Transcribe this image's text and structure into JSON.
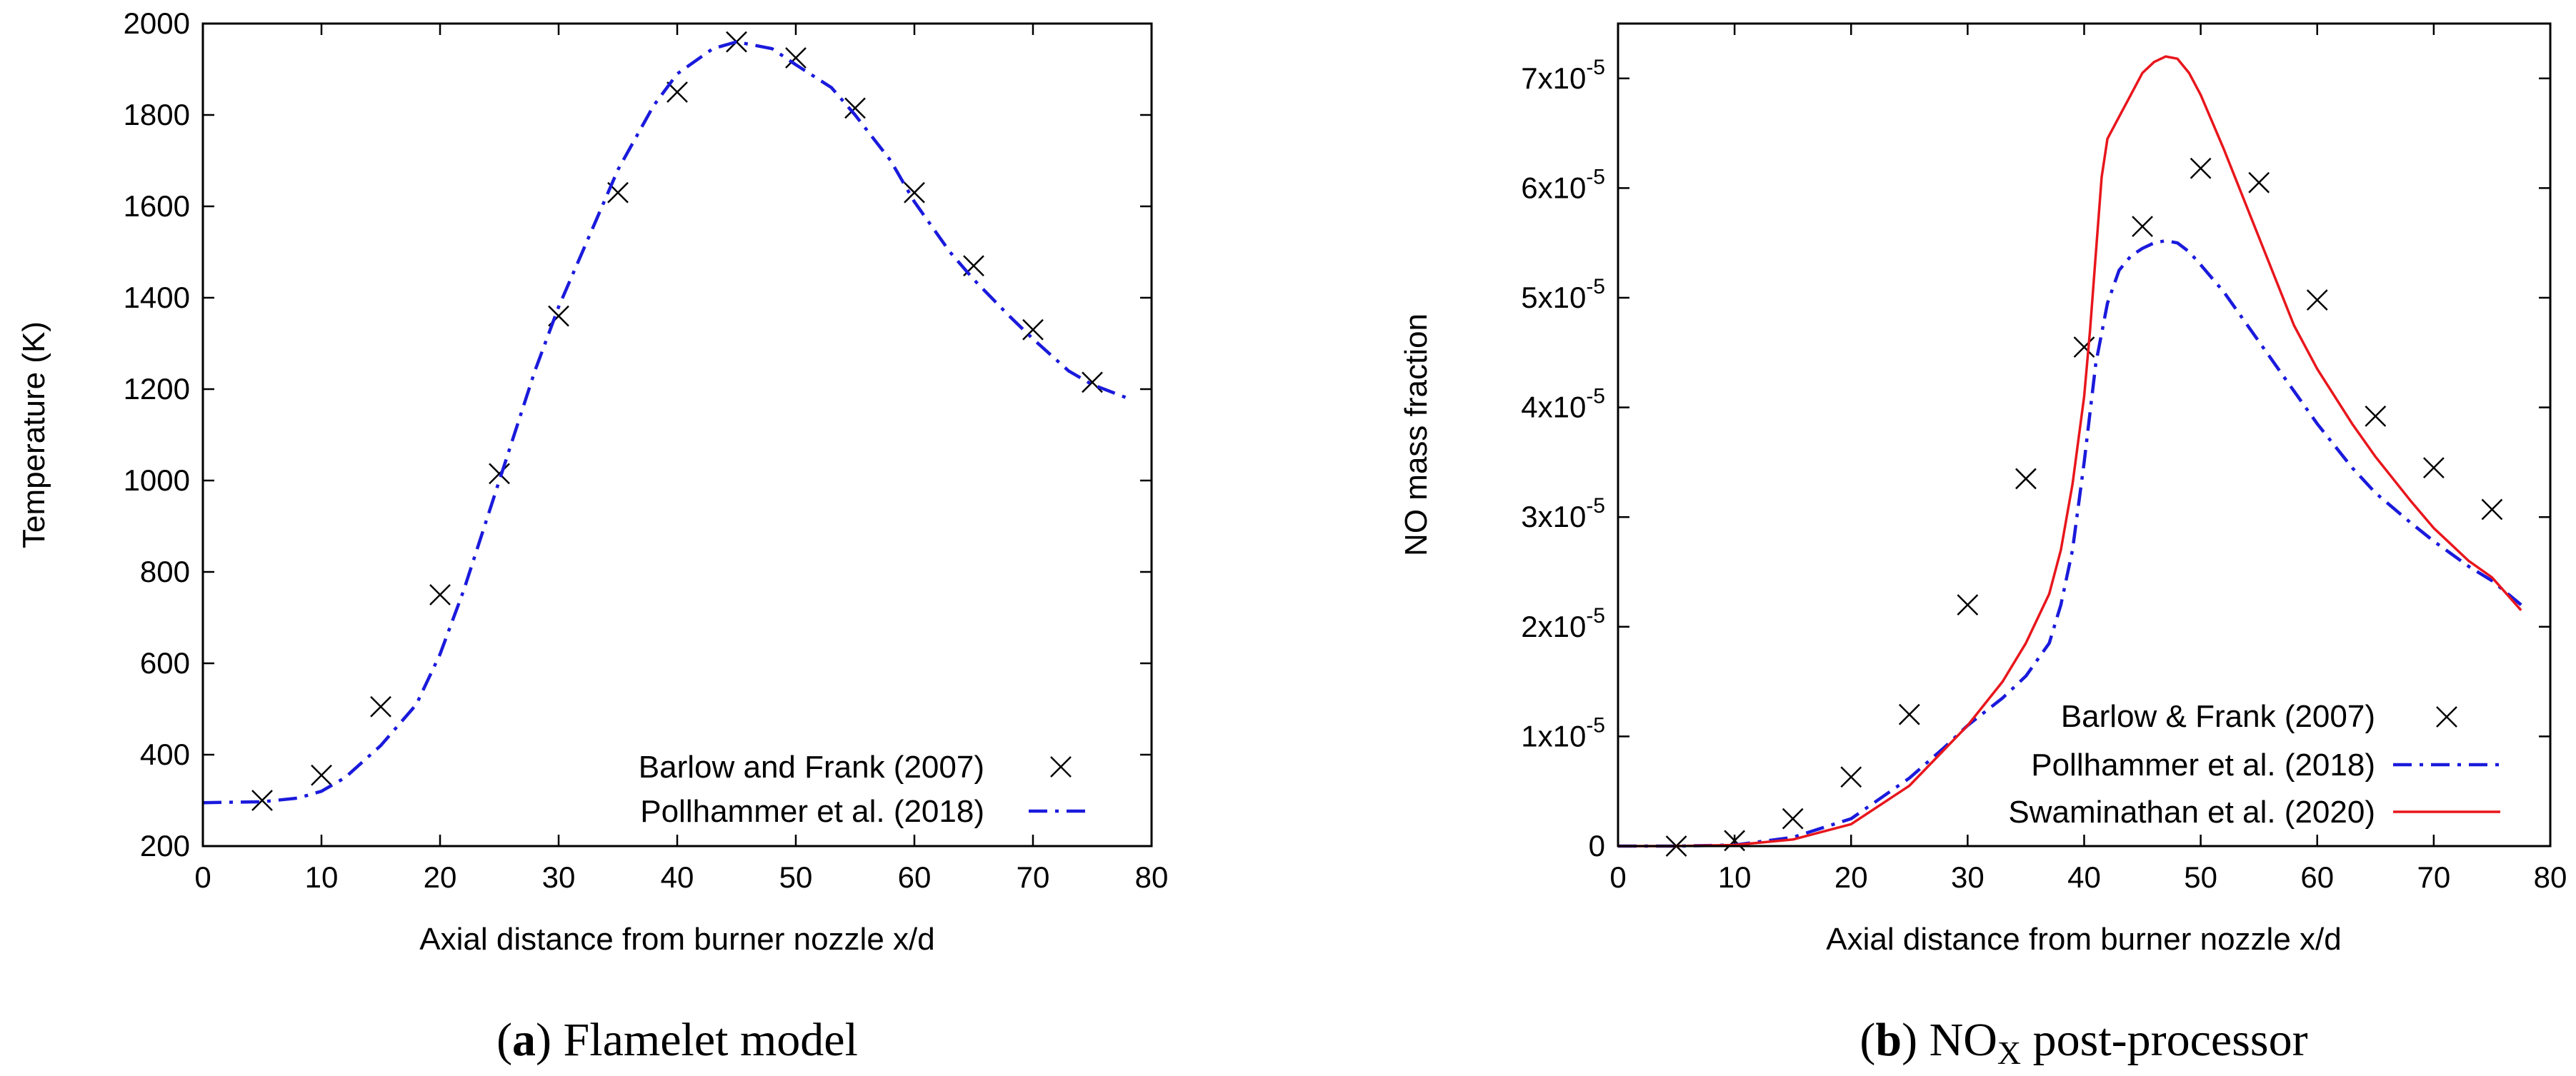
{
  "chart_data": [
    {
      "type": "line",
      "panel": "a",
      "caption": {
        "label": "a",
        "text": " Flamelet model"
      },
      "xlabel": "Axial distance from burner nozzle x/d",
      "ylabel": "Temperature (K)",
      "xlim": [
        0,
        80
      ],
      "ylim": [
        200,
        2000
      ],
      "xticks": [
        0,
        10,
        20,
        30,
        40,
        50,
        60,
        70,
        80
      ],
      "yticks": [
        200,
        400,
        600,
        800,
        1000,
        1200,
        1400,
        1600,
        1800,
        2000
      ],
      "xtick_labels": [
        "0",
        "10",
        "20",
        "30",
        "40",
        "50",
        "60",
        "70",
        "80"
      ],
      "ytick_labels": [
        "200",
        "400",
        "600",
        "800",
        "1000",
        "1200",
        "1400",
        "1600",
        "1800",
        "2000"
      ],
      "legend_position": "bottom-right",
      "series": [
        {
          "name": "Barlow and Frank (2007)",
          "style": "markers",
          "marker": "x",
          "color": "#000000",
          "x": [
            5,
            10,
            15,
            20,
            25,
            30,
            35,
            40,
            45,
            50,
            55,
            60,
            65,
            70,
            75
          ],
          "y": [
            300,
            355,
            505,
            750,
            1015,
            1360,
            1630,
            1850,
            1960,
            1925,
            1815,
            1630,
            1470,
            1330,
            1215
          ]
        },
        {
          "name": "Pollhammer et al. (2018)",
          "style": "dash-dot",
          "color": "#1a1adc",
          "x": [
            0,
            5,
            8,
            10,
            12,
            15,
            18,
            20,
            22,
            25,
            28,
            30,
            33,
            35,
            38,
            40,
            43,
            45,
            48,
            50,
            53,
            55,
            58,
            60,
            63,
            65,
            68,
            70,
            73,
            75,
            78
          ],
          "y": [
            295,
            297,
            305,
            320,
            350,
            420,
            510,
            620,
            760,
            1000,
            1240,
            1380,
            1560,
            1680,
            1820,
            1890,
            1945,
            1960,
            1945,
            1910,
            1860,
            1800,
            1700,
            1610,
            1500,
            1440,
            1360,
            1310,
            1240,
            1210,
            1180
          ]
        }
      ]
    },
    {
      "type": "line",
      "panel": "b",
      "caption": {
        "label": "b",
        "text": " NO",
        "sub": "X",
        "tail": " post-processor"
      },
      "xlabel": "Axial distance from burner nozzle x/d",
      "ylabel": "NO mass fraction",
      "xlim": [
        0,
        80
      ],
      "ylim": [
        0,
        7.5e-05
      ],
      "xticks": [
        0,
        10,
        20,
        30,
        40,
        50,
        60,
        70,
        80
      ],
      "yticks": [
        0,
        1e-05,
        2e-05,
        3e-05,
        4e-05,
        5e-05,
        6e-05,
        7e-05
      ],
      "xtick_labels": [
        "0",
        "10",
        "20",
        "30",
        "40",
        "50",
        "60",
        "70",
        "80"
      ],
      "ytick_labels": [
        {
          "mant": "0",
          "exp": ""
        },
        {
          "mant": "1x10",
          "exp": "-5"
        },
        {
          "mant": "2x10",
          "exp": "-5"
        },
        {
          "mant": "3x10",
          "exp": "-5"
        },
        {
          "mant": "4x10",
          "exp": "-5"
        },
        {
          "mant": "5x10",
          "exp": "-5"
        },
        {
          "mant": "6x10",
          "exp": "-5"
        },
        {
          "mant": "7x10",
          "exp": "-5"
        }
      ],
      "legend_position": "bottom-right",
      "series": [
        {
          "name": "Barlow & Frank (2007)",
          "style": "markers",
          "marker": "x",
          "color": "#000000",
          "x": [
            5,
            10,
            15,
            20,
            25,
            30,
            35,
            40,
            45,
            50,
            55,
            60,
            65,
            70,
            75
          ],
          "y": [
            0.0,
            5e-07,
            2.5e-06,
            6.3e-06,
            1.2e-05,
            2.2e-05,
            3.35e-05,
            4.55e-05,
            5.65e-05,
            6.18e-05,
            6.05e-05,
            4.98e-05,
            3.92e-05,
            3.45e-05,
            3.07e-05
          ]
        },
        {
          "name": "Pollhammer et al. (2018)",
          "style": "dash-dot",
          "color": "#1a1adc",
          "x": [
            0,
            5,
            10,
            15,
            20,
            25,
            28,
            30,
            33,
            35,
            37,
            38,
            39,
            40,
            41,
            42,
            43,
            44,
            45,
            46,
            47,
            48,
            49,
            50,
            52,
            55,
            58,
            60,
            63,
            65,
            68,
            70,
            73,
            75,
            77.5
          ],
          "y": [
            0,
            0,
            1e-07,
            8e-07,
            2.5e-06,
            6.2e-06,
            9e-06,
            1.1e-05,
            1.35e-05,
            1.55e-05,
            1.85e-05,
            2.2e-05,
            2.7e-05,
            3.5e-05,
            4.4e-05,
            4.95e-05,
            5.25e-05,
            5.38e-05,
            5.45e-05,
            5.5e-05,
            5.52e-05,
            5.5e-05,
            5.42e-05,
            5.3e-05,
            5.05e-05,
            4.6e-05,
            4.15e-05,
            3.85e-05,
            3.45e-05,
            3.22e-05,
            2.95e-05,
            2.78e-05,
            2.55e-05,
            2.42e-05,
            2.2e-05
          ]
        },
        {
          "name": "Swaminathan et al. (2020)",
          "style": "solid",
          "color": "#e8161c",
          "x": [
            0,
            5,
            10,
            15,
            20,
            25,
            30,
            33,
            35,
            37,
            38,
            39,
            40,
            40.5,
            41,
            41.5,
            42,
            43,
            44,
            45,
            46,
            47,
            48,
            49,
            50,
            52,
            55,
            58,
            60,
            63,
            65,
            68,
            70,
            73,
            75,
            77.5
          ],
          "y": [
            0,
            0,
            1e-07,
            6e-07,
            2e-06,
            5.5e-06,
            1.1e-05,
            1.5e-05,
            1.85e-05,
            2.3e-05,
            2.7e-05,
            3.3e-05,
            4.1e-05,
            4.7e-05,
            5.4e-05,
            6.1e-05,
            6.45e-05,
            6.65e-05,
            6.85e-05,
            7.05e-05,
            7.15e-05,
            7.2e-05,
            7.18e-05,
            7.05e-05,
            6.85e-05,
            6.35e-05,
            5.55e-05,
            4.75e-05,
            4.35e-05,
            3.85e-05,
            3.55e-05,
            3.15e-05,
            2.9e-05,
            2.6e-05,
            2.45e-05,
            2.15e-05
          ]
        }
      ]
    }
  ]
}
